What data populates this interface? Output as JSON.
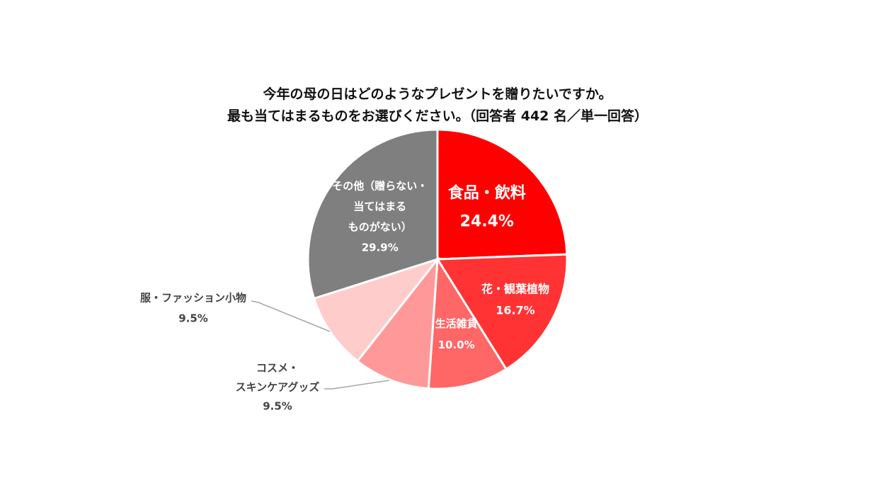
{
  "chart_data": {
    "type": "pie",
    "title": [
      "今年の母の日はどのようなプレゼントを贈りたいですか。",
      "最も当てはまるものをお選びください。（回答者 442 名／単一回答）"
    ],
    "slices": [
      {
        "label": [
          "食品・飲料"
        ],
        "value": 24.4,
        "value_label": "24.4%",
        "color": "#ff0000"
      },
      {
        "label": [
          "花・観葉植物"
        ],
        "value": 16.7,
        "value_label": "16.7%",
        "color": "#ff3333"
      },
      {
        "label": [
          "生活雑貨"
        ],
        "value": 10.0,
        "value_label": "10.0%",
        "color": "#ff6666"
      },
      {
        "label": [
          "コスメ・",
          "スキンケアグッズ"
        ],
        "value": 9.5,
        "value_label": "9.5%",
        "color": "#ff9999"
      },
      {
        "label": [
          "服・ファッション小物"
        ],
        "value": 9.5,
        "value_label": "9.5%",
        "color": "#ffcccc"
      },
      {
        "label": [
          "その他（贈らない・",
          "当てはまる",
          "ものがない）"
        ],
        "value": 29.9,
        "value_label": "29.9%",
        "color": "#7f7f7f"
      }
    ]
  }
}
